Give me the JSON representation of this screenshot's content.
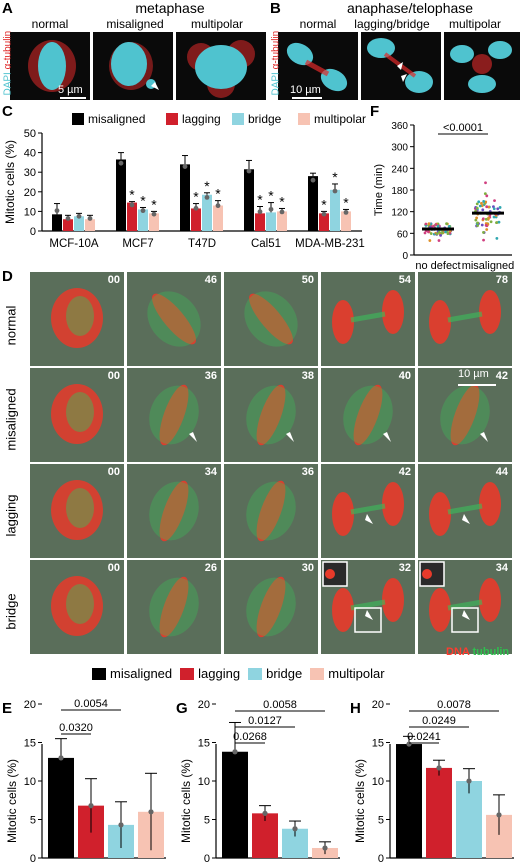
{
  "panels": {
    "A": {
      "letter": "A",
      "title": "metaphase",
      "conditions": [
        "normal",
        "misaligned",
        "multipolar"
      ],
      "scale": "5 µm",
      "stain_dapi": "DAPI",
      "stain_tub": "α-tubulin"
    },
    "B": {
      "letter": "B",
      "title": "anaphase/telophase",
      "conditions": [
        "normal",
        "lagging/bridge",
        "multipolar"
      ],
      "scale": "10 µm",
      "stain_dapi": "DAPI",
      "stain_tub": "α-tubulin"
    },
    "C": {
      "letter": "C"
    },
    "D": {
      "letter": "D",
      "rows": [
        "normal",
        "misaligned",
        "lagging",
        "bridge"
      ],
      "frames": [
        [
          "00",
          "46",
          "50",
          "54",
          "78"
        ],
        [
          "00",
          "36",
          "38",
          "40",
          "42"
        ],
        [
          "00",
          "34",
          "36",
          "42",
          "44"
        ],
        [
          "00",
          "26",
          "30",
          "32",
          "34"
        ]
      ],
      "scale": "10 µm",
      "dna": "DNA",
      "tubulin": "tubulin"
    },
    "E": {
      "letter": "E"
    },
    "F": {
      "letter": "F"
    },
    "G": {
      "letter": "G"
    },
    "H": {
      "letter": "H"
    }
  },
  "colors": {
    "misaligned": "#000000",
    "lagging": "#d0202c",
    "bridge": "#8fd4e0",
    "multipolar": "#f7c3b3"
  },
  "legend_bottom": [
    "misaligned",
    "lagging",
    "bridge",
    "multipolar"
  ],
  "chart_data": [
    {
      "id": "C",
      "type": "bar",
      "ylabel": "Mitotic cells (%)",
      "ylim": [
        0,
        50
      ],
      "yticks": [
        0,
        10,
        20,
        30,
        40,
        50
      ],
      "categories": [
        "MCF-10A",
        "MCF7",
        "T47D",
        "Cal51",
        "MDA-MB-231"
      ],
      "legend": [
        "misaligned",
        "lagging",
        "bridge",
        "multipolar"
      ],
      "series": [
        {
          "name": "misaligned",
          "values": [
            8.5,
            36.5,
            34,
            31.5,
            28
          ]
        },
        {
          "name": "lagging",
          "values": [
            6,
            14.5,
            11.5,
            9,
            9
          ]
        },
        {
          "name": "bridge",
          "values": [
            7.5,
            11,
            18.5,
            9.5,
            21
          ]
        },
        {
          "name": "multipolar",
          "values": [
            6,
            9,
            13,
            10,
            10
          ]
        }
      ],
      "errors": [
        [
          5.5,
          3.5,
          4.5,
          4.5,
          1.5
        ],
        [
          2,
          0.5,
          2.5,
          3.5,
          1
        ],
        [
          1.5,
          1,
          1,
          5,
          3
        ],
        [
          2,
          1,
          2.5,
          1.5,
          1
        ]
      ],
      "stars": [
        [
          false,
          false,
          false,
          false,
          false
        ],
        [
          false,
          true,
          true,
          true,
          true
        ],
        [
          false,
          true,
          true,
          true,
          true
        ],
        [
          false,
          true,
          true,
          true,
          true
        ]
      ]
    },
    {
      "id": "F",
      "type": "scatter",
      "ylabel": "Time (min)",
      "ylim": [
        0,
        360
      ],
      "yticks": [
        0,
        60,
        120,
        180,
        240,
        300,
        360
      ],
      "categories": [
        "no defect",
        "misaligned"
      ],
      "medians": [
        72,
        116
      ],
      "pvalue": "<0.0001"
    },
    {
      "id": "E",
      "type": "bar",
      "ylabel": "Mitotic cells (%)",
      "ylim": [
        0,
        20
      ],
      "yticks": [
        0,
        5,
        10,
        15,
        20
      ],
      "categories": [
        "misaligned",
        "lagging",
        "bridge",
        "multipolar"
      ],
      "values": [
        13,
        6.8,
        4.3,
        6
      ],
      "errors": [
        2.5,
        3.5,
        3,
        5
      ],
      "comparisons": [
        {
          "from": 0,
          "to": 1,
          "p": "0.0320"
        },
        {
          "from": 0,
          "to": 2,
          "p": "0.0054"
        }
      ]
    },
    {
      "id": "G",
      "type": "bar",
      "ylabel": "Mitotic cells (%)",
      "ylim": [
        0,
        20
      ],
      "yticks": [
        0,
        5,
        10,
        15,
        20
      ],
      "categories": [
        "misaligned",
        "lagging",
        "bridge",
        "multipolar"
      ],
      "values": [
        13.8,
        5.8,
        3.8,
        1.3
      ],
      "errors": [
        3.8,
        1,
        1,
        0.8
      ],
      "comparisons": [
        {
          "from": 0,
          "to": 1,
          "p": "0.0268"
        },
        {
          "from": 0,
          "to": 2,
          "p": "0.0127"
        },
        {
          "from": 0,
          "to": 3,
          "p": "0.0058"
        }
      ]
    },
    {
      "id": "H",
      "type": "bar",
      "ylabel": "Mitotic cells (%)",
      "ylim": [
        0,
        20
      ],
      "yticks": [
        0,
        5,
        10,
        15,
        20
      ],
      "categories": [
        "misaligned",
        "lagging",
        "bridge",
        "multipolar"
      ],
      "values": [
        14.8,
        11.7,
        10,
        5.6
      ],
      "errors": [
        1,
        1,
        1.6,
        2.6
      ],
      "comparisons": [
        {
          "from": 0,
          "to": 1,
          "p": "0.0241"
        },
        {
          "from": 0,
          "to": 2,
          "p": "0.0249"
        },
        {
          "from": 0,
          "to": 3,
          "p": "0.0078"
        }
      ]
    }
  ]
}
